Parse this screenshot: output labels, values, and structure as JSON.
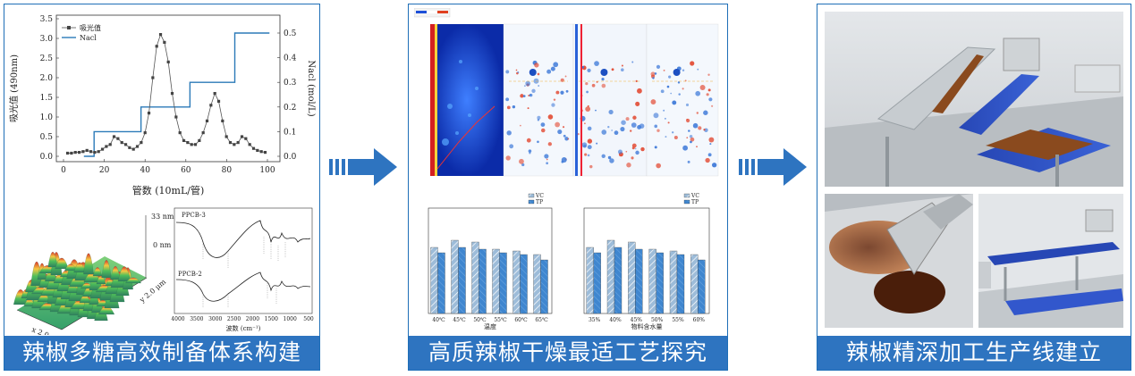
{
  "panels": [
    {
      "caption": "辣椒多糖高效制备体系构建"
    },
    {
      "caption": "高质辣椒干燥最适工艺探究"
    },
    {
      "caption": "辣椒精深加工生产线建立"
    }
  ],
  "elution": {
    "ylabel_left": "吸光值 (490nm)",
    "ylabel_right": "Nacl (mol/L)",
    "xlabel": "管数 (10mL/管)",
    "legend": [
      "吸光值",
      "Nacl"
    ],
    "x_ticks": [
      "0",
      "20",
      "40",
      "60",
      "80",
      "100"
    ],
    "yleft_ticks": [
      "0.0",
      "0.5",
      "1.0",
      "1.5",
      "2.0",
      "2.5",
      "3.0",
      "3.5"
    ],
    "yright_ticks": [
      "0.0",
      "0.1",
      "0.2",
      "0.3",
      "0.4",
      "0.5"
    ]
  },
  "afm": {
    "top_label": "33 nm",
    "mid_label": "0 nm",
    "x_label": "x 2.0 μm",
    "y_label": "y 2.0 μm"
  },
  "ftir": {
    "series": [
      "PPCB-3",
      "PPCB-2"
    ],
    "xlabel": "波数 (cm⁻¹)",
    "x_ticks": [
      "4000",
      "3500",
      "3000",
      "2500",
      "2000",
      "1500",
      "1000",
      "500"
    ]
  },
  "bars_left": {
    "legend": [
      "VC",
      "TP"
    ],
    "categories": [
      "40℃",
      "45℃",
      "50℃",
      "55℃",
      "60℃",
      "65℃"
    ],
    "xlabel": "温度"
  },
  "bars_right": {
    "legend": [
      "VC",
      "TP"
    ],
    "categories": [
      "35%",
      "40%",
      "45%",
      "50%",
      "55%",
      "60%"
    ],
    "xlabel": "物料含水量"
  },
  "colors": {
    "accent": "#2e74c0",
    "border": "#1f6fb7"
  }
}
